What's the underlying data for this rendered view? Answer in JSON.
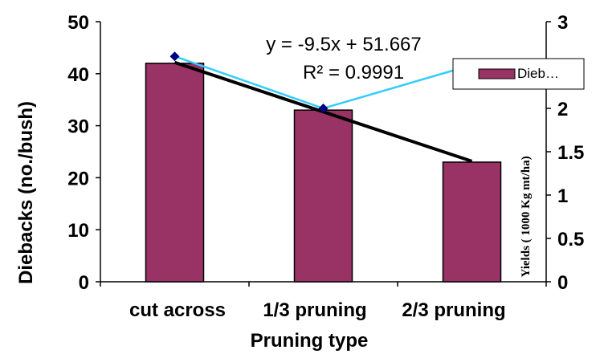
{
  "chart_data": {
    "type": "bar",
    "title": "",
    "xlabel": "Pruning type",
    "ylabel": "Diebacks (no./bush)",
    "y2label": "Yields ( 1000 Kg mt/ha)",
    "categories": [
      "cut across",
      "1/3 pruning",
      "2/3 pruning"
    ],
    "ylim": [
      0,
      50
    ],
    "yticks": [
      0,
      10,
      20,
      30,
      40,
      50
    ],
    "y2lim": [
      0,
      3
    ],
    "y2ticks": [
      "0",
      "0.5",
      "1",
      "1.5",
      "2",
      "2.5",
      "3"
    ],
    "series": [
      {
        "name": "Dieb…",
        "type": "bar",
        "axis": "left",
        "values": [
          42,
          33,
          23
        ]
      },
      {
        "type": "line",
        "axis": "right",
        "values": [
          2.6,
          2.0,
          2.5
        ]
      }
    ],
    "trendline": {
      "slope": -9.5,
      "intercept": 51.667
    },
    "annotation": {
      "equation": "y = -9.5x + 51.667",
      "r2": "R² = 0.9991"
    },
    "legend": {
      "placement": "right"
    },
    "colors": {
      "bar": "#993366",
      "line": "#33CCFF",
      "marker": "#000080",
      "trend": "#000000"
    }
  }
}
